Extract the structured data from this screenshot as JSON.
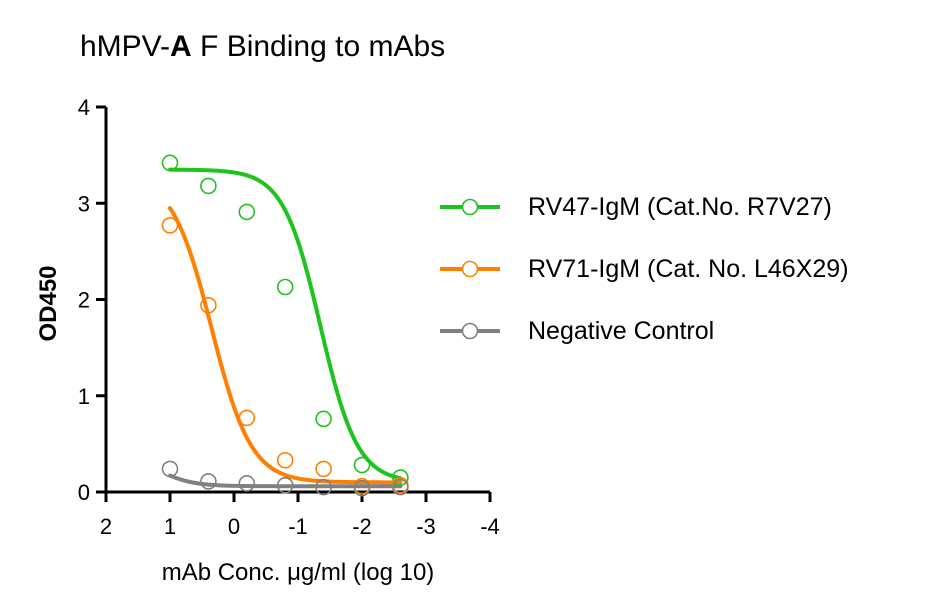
{
  "chart_data": {
    "type": "scatter",
    "title_pre": "hMPV-",
    "title_bold": "A",
    "title_post": " F Binding to mAbs",
    "xlabel": "mAb Conc. μg/ml (log 10)",
    "ylabel": "OD450",
    "xlim": [
      2,
      -4
    ],
    "ylim": [
      0,
      4
    ],
    "x_ticks": [
      2,
      1,
      0,
      -1,
      -2,
      -3,
      -4
    ],
    "y_ticks": [
      0,
      1,
      2,
      3,
      4
    ],
    "legend_position": "right",
    "series": [
      {
        "name": "RV47-IgM (Cat.No. R7V27)",
        "color": "#1ec41e",
        "x": [
          1,
          0.4,
          -0.2,
          -0.8,
          -1.4,
          -2,
          -2.6
        ],
        "y": [
          3.42,
          3.18,
          2.91,
          2.13,
          0.76,
          0.28,
          0.15
        ],
        "fit": {
          "top": 3.35,
          "bottom": 0.1,
          "logEC50": -1.35,
          "hill": 1.5
        }
      },
      {
        "name": "RV71-IgM (Cat. No. L46X29)",
        "color": "#ff8000",
        "x": [
          1,
          0.4,
          -0.2,
          -0.8,
          -1.4,
          -2,
          -2.6
        ],
        "y": [
          2.77,
          1.94,
          0.77,
          0.33,
          0.24,
          0.06,
          0.07
        ],
        "fit": {
          "top": 3.3,
          "bottom": 0.1,
          "logEC50": 0.35,
          "hill": 1.4
        }
      },
      {
        "name": "Negative Control",
        "color": "#808080",
        "x": [
          1,
          0.4,
          -0.2,
          -0.8,
          -1.4,
          -2,
          -2.6
        ],
        "y": [
          0.24,
          0.11,
          0.09,
          0.07,
          0.05,
          0.04,
          0.05
        ],
        "fit": {
          "top": 0.4,
          "bottom": 0.06,
          "logEC50": 1.2,
          "hill": 1.6
        }
      }
    ]
  }
}
